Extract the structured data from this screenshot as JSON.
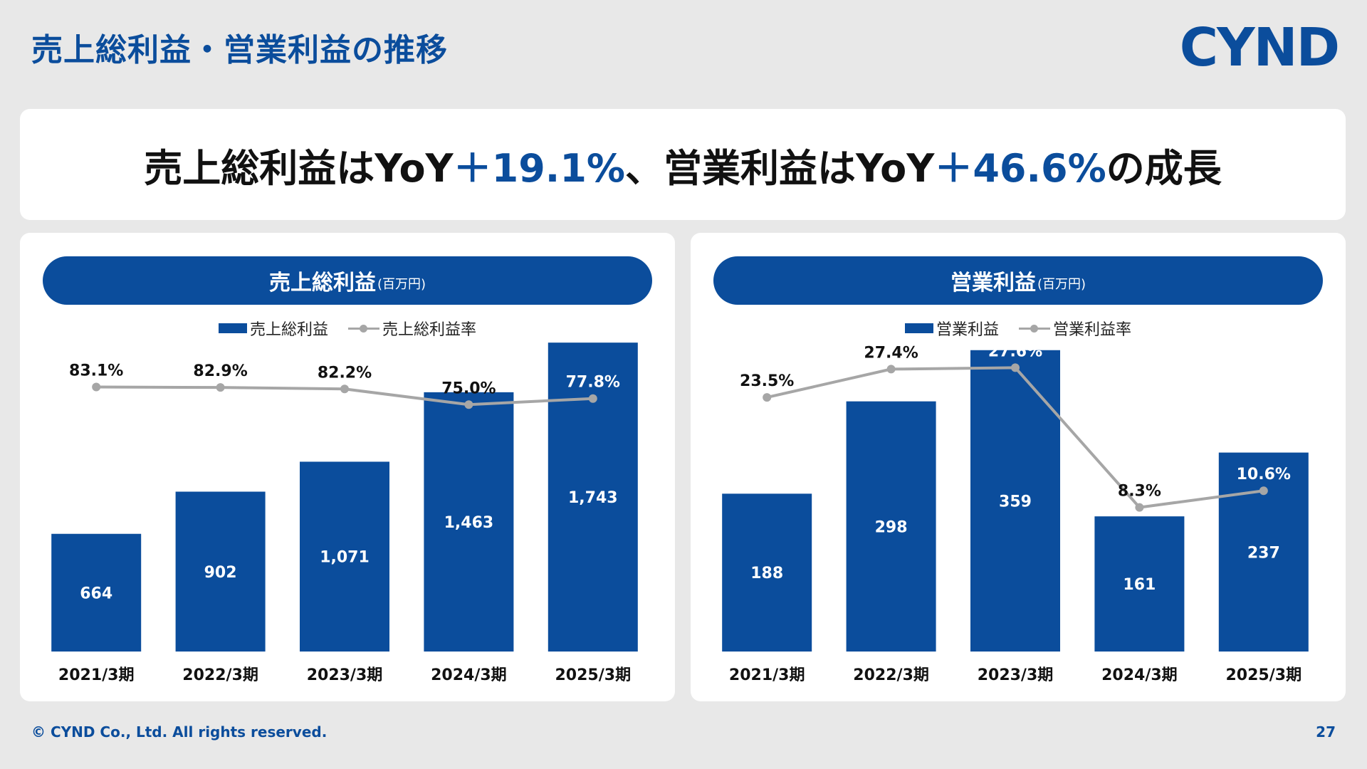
{
  "header": {
    "title": "売上総利益・営業利益の推移",
    "logo": "CYND"
  },
  "headline": {
    "part1": "売上総利益はYoY",
    "value1": "＋19.1%",
    "part2": "、営業利益はYoY",
    "value2": "＋46.6%",
    "part3": "の成長"
  },
  "colors": {
    "bar": "#0b4d9c",
    "line": "#a6a6a6",
    "accent": "#0b4d9c"
  },
  "chart_data": [
    {
      "type": "bar",
      "title": "売上総利益",
      "unit": "(百万円)",
      "categories": [
        "2021/3期",
        "2022/3期",
        "2023/3期",
        "2024/3期",
        "2025/3期"
      ],
      "series": [
        {
          "name": "売上総利益",
          "type": "bar",
          "values": [
            664,
            902,
            1071,
            1463,
            1743
          ],
          "labels": [
            "664",
            "902",
            "1,071",
            "1,463",
            "1,743"
          ]
        },
        {
          "name": "売上総利益率",
          "type": "line",
          "values": [
            83.1,
            82.9,
            82.2,
            75.0,
            77.8
          ],
          "labels": [
            "83.1%",
            "82.9%",
            "82.2%",
            "75.0%",
            "77.8%"
          ]
        }
      ],
      "ylim": [
        0,
        1800
      ],
      "y2lim": [
        0,
        100
      ],
      "legend": "top-center",
      "grid": false
    },
    {
      "type": "bar",
      "title": "営業利益",
      "unit": "(百万円)",
      "categories": [
        "2021/3期",
        "2022/3期",
        "2023/3期",
        "2024/3期",
        "2025/3期"
      ],
      "series": [
        {
          "name": "営業利益",
          "type": "bar",
          "values": [
            188,
            298,
            359,
            161,
            237
          ],
          "labels": [
            "188",
            "298",
            "359",
            "161",
            "237"
          ]
        },
        {
          "name": "営業利益率",
          "type": "line",
          "values": [
            23.5,
            27.4,
            27.6,
            8.3,
            10.6
          ],
          "labels": [
            "23.5%",
            "27.4%",
            "27.6%",
            "8.3%",
            "10.6%"
          ]
        }
      ],
      "ylim": [
        0,
        380
      ],
      "y2lim": [
        0,
        30
      ],
      "legend": "top-center",
      "grid": false
    }
  ],
  "footer": {
    "copyright": "© CYND Co., Ltd. All rights reserved.",
    "page_number": "27"
  }
}
